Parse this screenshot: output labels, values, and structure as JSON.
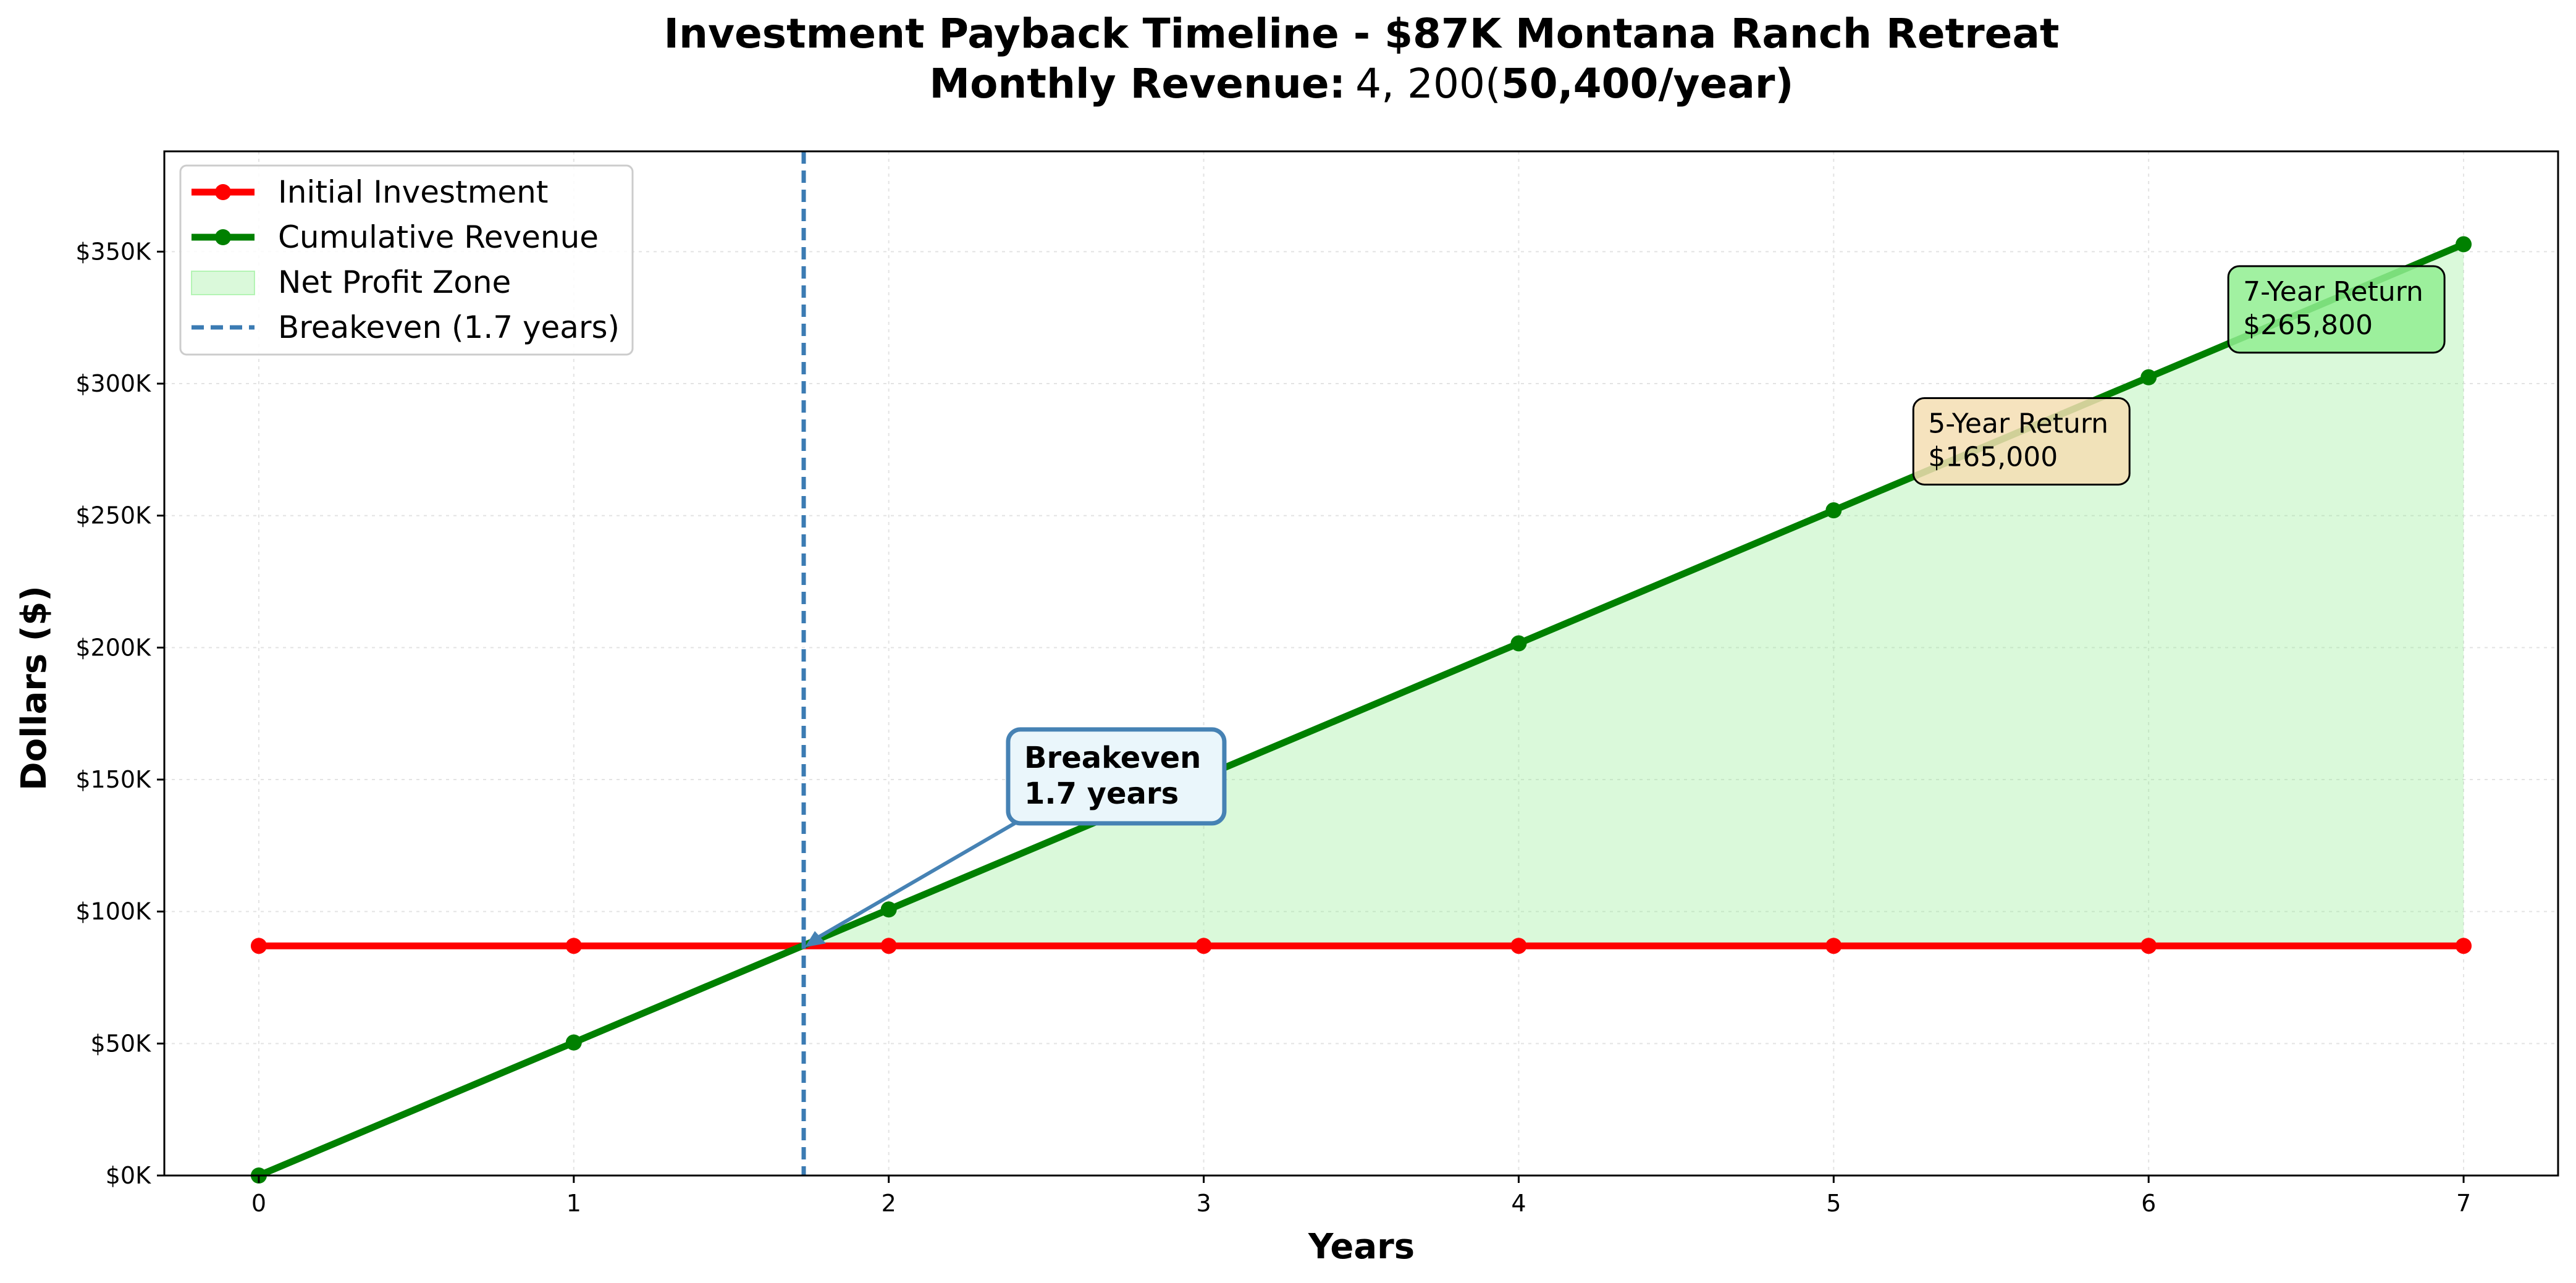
{
  "chart_data": {
    "type": "line",
    "title_line1": "Investment Payback Timeline - $87K Montana Ranch Retreat",
    "title_line2_bold": "Monthly Revenue:",
    "title_line2_math": "4, 200(",
    "title_line2_tail": "50,400/year)",
    "xlabel": "Years",
    "ylabel": "Dollars ($)",
    "x": [
      0,
      1,
      2,
      3,
      4,
      5,
      6,
      7
    ],
    "xlim": [
      -0.3,
      7.3
    ],
    "ylim": [
      0,
      388000
    ],
    "x_ticks": [
      0,
      1,
      2,
      3,
      4,
      5,
      6,
      7
    ],
    "y_ticks": [
      0,
      50000,
      100000,
      150000,
      200000,
      250000,
      300000,
      350000
    ],
    "y_tick_labels": [
      "$0K",
      "$50K",
      "$100K",
      "$150K",
      "$200K",
      "$250K",
      "$300K",
      "$350K"
    ],
    "grid": true,
    "legend_position": "top-left",
    "series": [
      {
        "name": "Initial Investment",
        "color": "#ff0000",
        "values": [
          87000,
          87000,
          87000,
          87000,
          87000,
          87000,
          87000,
          87000
        ]
      },
      {
        "name": "Cumulative Revenue",
        "color": "#008000",
        "values": [
          0,
          50400,
          100800,
          151200,
          201600,
          252000,
          302400,
          352800
        ]
      }
    ],
    "fill": {
      "name": "Net Profit Zone",
      "color": "#90ee90",
      "from_x": 1.73
    },
    "breakeven": {
      "name": "Breakeven (1.7 years)",
      "x": 1.73,
      "y": 87000,
      "color": "#3b7bb3"
    },
    "annotations": [
      {
        "id": "breakeven",
        "lines": [
          "Breakeven",
          "1.7 years"
        ],
        "x": 2.43,
        "y": 125000
      },
      {
        "id": "five-year",
        "lines": [
          "5-Year Return",
          "$165,000"
        ],
        "x": 5.3,
        "y": 280000,
        "bg": "#f5deb3"
      },
      {
        "id": "seven-year",
        "lines": [
          "7-Year Return",
          "$265,800"
        ],
        "x": 6.3,
        "y": 330000,
        "bg": "#90ee90"
      }
    ]
  }
}
